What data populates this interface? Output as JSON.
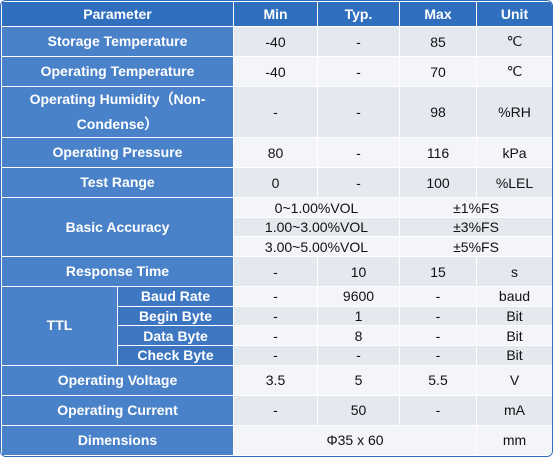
{
  "header": [
    "Parameter",
    "Min",
    "Typ.",
    "Max",
    "Unit"
  ],
  "storage": {
    "label": "Storage Temperature",
    "min": "-40",
    "typ": "-",
    "max": "85",
    "unit": "℃"
  },
  "op_temp": {
    "label": "Operating Temperature",
    "min": "-40",
    "typ": "-",
    "max": "70",
    "unit": "℃"
  },
  "humidity": {
    "label_line1": "Operating Humidity（Non-",
    "label_line2": "Condense）",
    "min": "-",
    "typ": "-",
    "max": "98",
    "unit": "%RH"
  },
  "pressure": {
    "label": "Operating Pressure",
    "min": "80",
    "typ": "-",
    "max": "116",
    "unit": "kPa"
  },
  "test_range": {
    "label": "Test Range",
    "min": "0",
    "typ": "-",
    "max": "100",
    "unit": "%LEL"
  },
  "accuracy": {
    "label": "Basic Accuracy",
    "rows": [
      {
        "range": "0~1.00%VOL",
        "value": "±1%FS"
      },
      {
        "range": "1.00~3.00%VOL",
        "value": "±3%FS"
      },
      {
        "range": "3.00~5.00%VOL",
        "value": "±5%FS"
      }
    ]
  },
  "response": {
    "label": "Response Time",
    "min": "-",
    "typ": "10",
    "max": "15",
    "unit": "s"
  },
  "ttl": {
    "label": "TTL",
    "rows": [
      {
        "label": "Baud Rate",
        "min": "-",
        "typ": "9600",
        "max": "-",
        "unit": "baud"
      },
      {
        "label": "Begin Byte",
        "min": "-",
        "typ": "1",
        "max": "-",
        "unit": "Bit"
      },
      {
        "label": "Data Byte",
        "min": "-",
        "typ": "8",
        "max": "-",
        "unit": "Bit"
      },
      {
        "label": "Check Byte",
        "min": "-",
        "typ": "-",
        "max": "-",
        "unit": "Bit"
      }
    ]
  },
  "voltage": {
    "label": "Operating Voltage",
    "min": "3.5",
    "typ": "5",
    "max": "5.5",
    "unit": "V"
  },
  "current": {
    "label": "Operating Current",
    "min": "-",
    "typ": "50",
    "max": "-",
    "unit": "mA"
  },
  "dimensions": {
    "label": "Dimensions",
    "value": "Φ35 x 60",
    "unit": "mm"
  }
}
